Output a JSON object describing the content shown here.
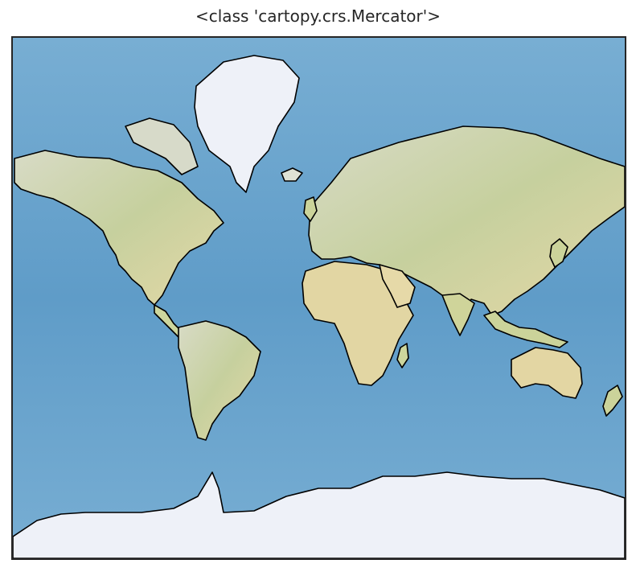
{
  "figure": {
    "title": "<class 'cartopy.crs.Mercator'>"
  },
  "map": {
    "projection": "Mercator",
    "background": "stock image (shaded relief + ocean)",
    "coastlines": true,
    "colors": {
      "ocean": "#6aa5cf",
      "ocean_deep": "#4f8fc0",
      "land": "#d9dcc3",
      "land_green": "#b9c98f",
      "land_desert": "#e6d9a8",
      "ice": "#eef1f8",
      "coastline": "#000000",
      "frame": "#262626"
    }
  }
}
